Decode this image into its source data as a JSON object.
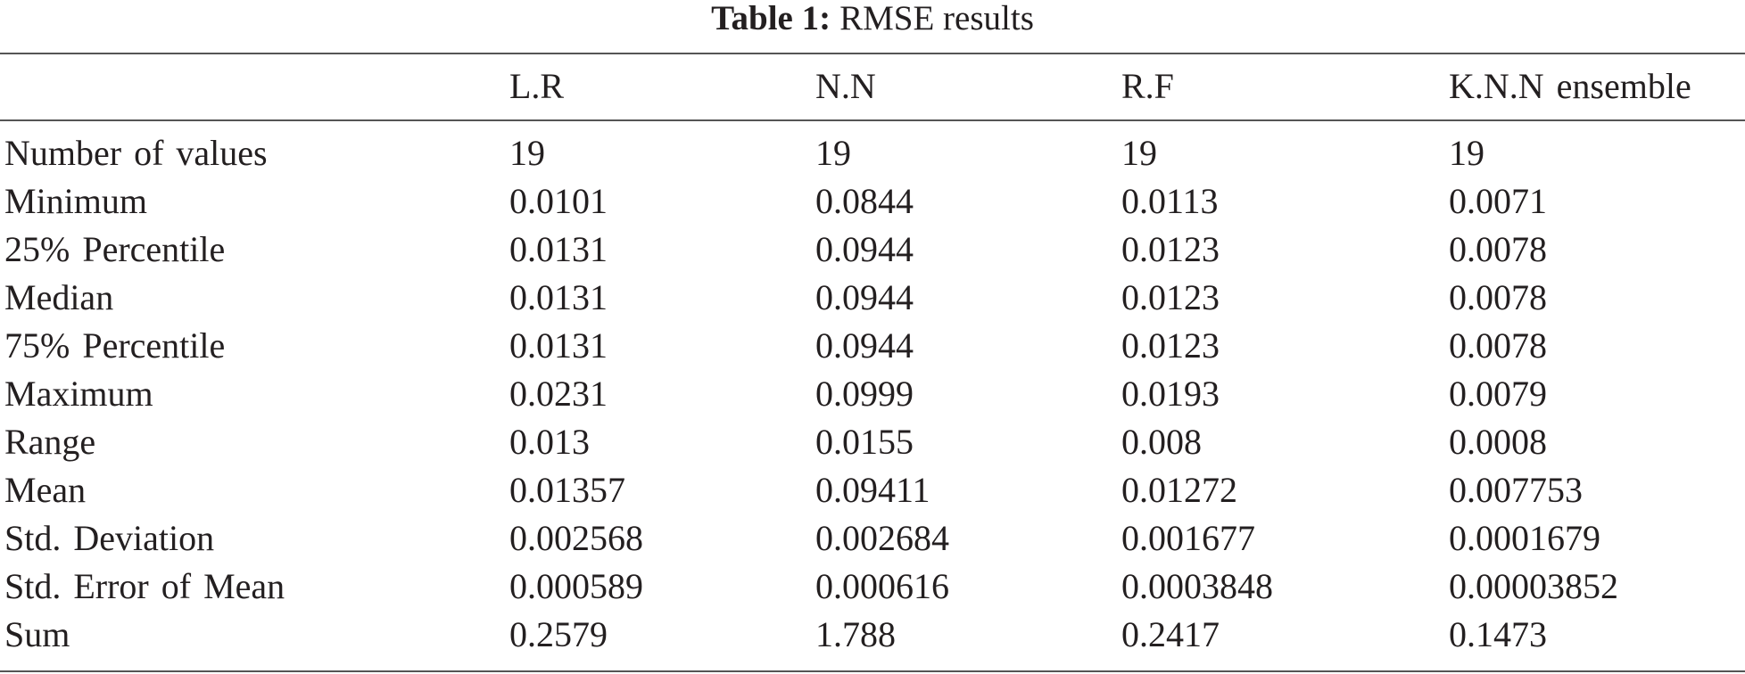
{
  "title": {
    "label": "Table 1:",
    "text": "RMSE results"
  },
  "table": {
    "columns": [
      "L.R",
      "N.N",
      "R.F",
      "K.N.N ensemble"
    ],
    "rows": [
      [
        "Number of values",
        "19",
        "19",
        "19",
        "19"
      ],
      [
        "Minimum",
        "0.0101",
        "0.0844",
        "0.0113",
        "0.0071"
      ],
      [
        "25% Percentile",
        "0.0131",
        "0.0944",
        "0.0123",
        "0.0078"
      ],
      [
        "Median",
        "0.0131",
        "0.0944",
        "0.0123",
        "0.0078"
      ],
      [
        "75% Percentile",
        "0.0131",
        "0.0944",
        "0.0123",
        "0.0078"
      ],
      [
        "Maximum",
        "0.0231",
        "0.0999",
        "0.0193",
        "0.0079"
      ],
      [
        "Range",
        "0.013",
        "0.0155",
        "0.008",
        "0.0008"
      ],
      [
        "Mean",
        "0.01357",
        "0.09411",
        "0.01272",
        "0.007753"
      ],
      [
        "Std. Deviation",
        "0.002568",
        "0.002684",
        "0.001677",
        "0.0001679"
      ],
      [
        "Std. Error of Mean",
        "0.000589",
        "0.000616",
        "0.0003848",
        "0.00003852"
      ],
      [
        "Sum",
        "0.2579",
        "1.788",
        "0.2417",
        "0.1473"
      ]
    ]
  }
}
